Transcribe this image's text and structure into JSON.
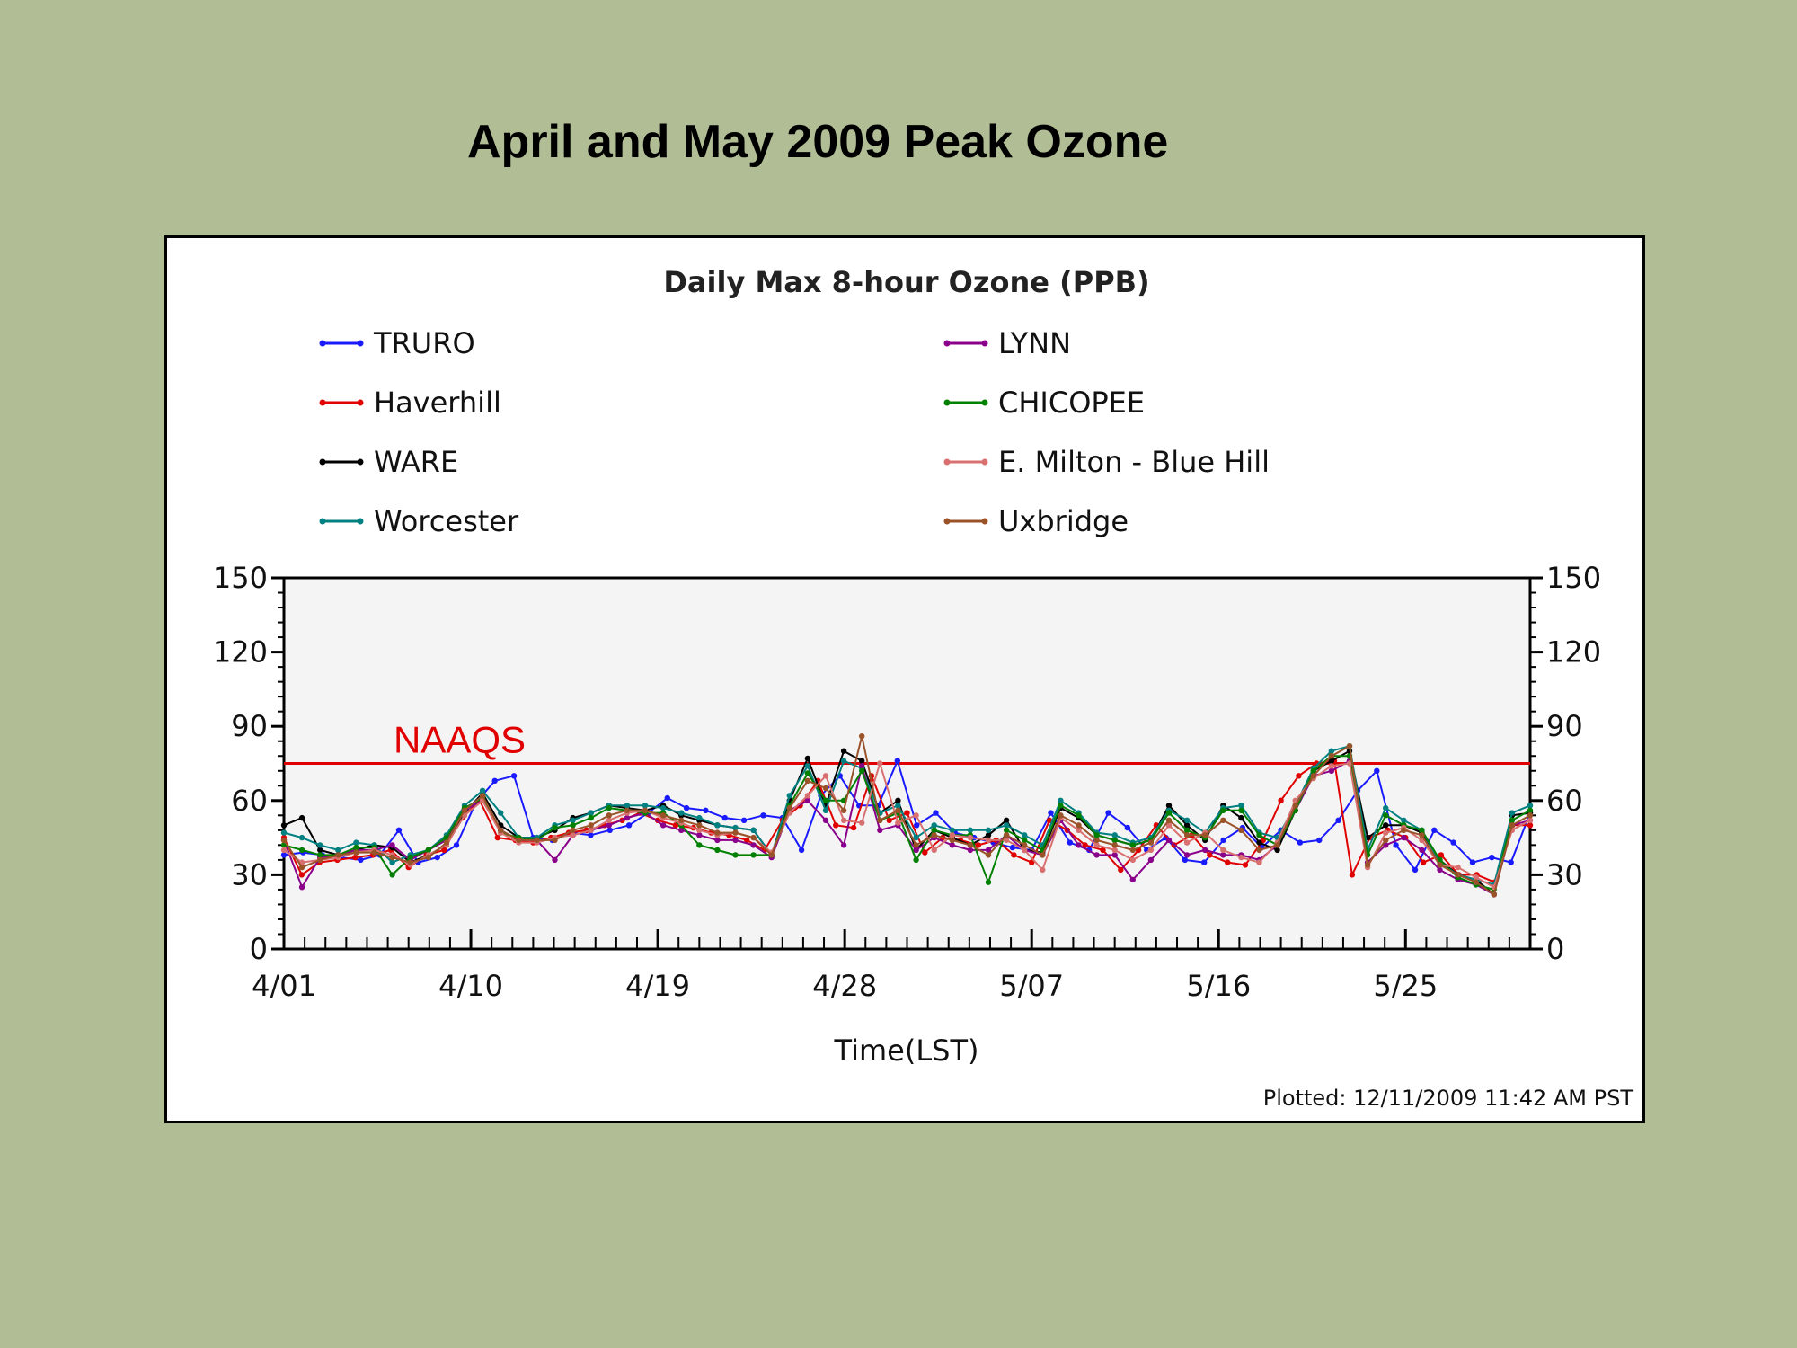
{
  "slide": {
    "title": "April and May 2009 Peak Ozone"
  },
  "colors": {
    "background": "#b1bd95",
    "naaqs": "#e00000"
  },
  "chart_data": {
    "type": "line",
    "title": "Daily Max 8-hour Ozone (PPB)",
    "xlabel": "Time(LST)",
    "ylabel": "",
    "ylim": [
      0,
      150
    ],
    "y_ticks": [
      0,
      30,
      60,
      90,
      120,
      150
    ],
    "y_ticks_right": true,
    "x_day_range": [
      1,
      61
    ],
    "x_ticks": [
      {
        "day": 1,
        "label": "4/01"
      },
      {
        "day": 10,
        "label": "4/10"
      },
      {
        "day": 19,
        "label": "4/19"
      },
      {
        "day": 28,
        "label": "4/28"
      },
      {
        "day": 37,
        "label": "5/07"
      },
      {
        "day": 46,
        "label": "5/16"
      },
      {
        "day": 55,
        "label": "5/25"
      }
    ],
    "grid": false,
    "legend_position": "top",
    "reference_line": {
      "label": "NAAQS",
      "value": 75,
      "color": "#e00000"
    },
    "footnote": "Plotted: 12/11/2009 11:42 AM PST",
    "series": [
      {
        "name": "TRURO",
        "color": "#1a1aff",
        "values": [
          38,
          39,
          38,
          37,
          36,
          38,
          48,
          35,
          37,
          42,
          59,
          68,
          70,
          45,
          44,
          47,
          46,
          48,
          50,
          55,
          61,
          57,
          56,
          53,
          52,
          54,
          53,
          40,
          62,
          70,
          58,
          58,
          76,
          50,
          55,
          47,
          45,
          43,
          41,
          40,
          55,
          43,
          40,
          55,
          49,
          40,
          45,
          36,
          35,
          44,
          49,
          41,
          48,
          43,
          44,
          52,
          64,
          72,
          42,
          32,
          48,
          43,
          35,
          37,
          35,
          55
        ]
      },
      {
        "name": "Haverhill",
        "color": "#e00000",
        "values": [
          45,
          30,
          35,
          36,
          37,
          38,
          40,
          33,
          38,
          40,
          53,
          60,
          45,
          44,
          43,
          45,
          47,
          48,
          50,
          52,
          55,
          52,
          50,
          49,
          47,
          46,
          44,
          40,
          52,
          58,
          68,
          50,
          49,
          70,
          52,
          55,
          39,
          45,
          44,
          42,
          44,
          38,
          35,
          52,
          48,
          42,
          40,
          32,
          40,
          50,
          42,
          46,
          38,
          35,
          34,
          44,
          60,
          70,
          75,
          76,
          30,
          45,
          48,
          45,
          35,
          38,
          30,
          30,
          27,
          50,
          50
        ]
      },
      {
        "name": "WARE",
        "color": "#000000",
        "values": [
          50,
          53,
          40,
          38,
          40,
          42,
          41,
          35,
          38,
          42,
          55,
          63,
          50,
          45,
          45,
          48,
          53,
          55,
          58,
          57,
          56,
          58,
          54,
          52,
          50,
          49,
          48,
          38,
          60,
          77,
          58,
          80,
          76,
          55,
          60,
          40,
          48,
          45,
          42,
          46,
          52,
          40,
          39,
          57,
          53,
          46,
          44,
          42,
          44,
          58,
          50,
          44,
          58,
          53,
          43,
          40,
          56,
          72,
          76,
          80,
          45,
          50,
          50,
          47,
          36,
          30,
          28,
          22,
          54,
          55
        ]
      },
      {
        "name": "Worcester",
        "color": "#008080",
        "values": [
          47,
          45,
          42,
          40,
          43,
          42,
          35,
          38,
          40,
          46,
          58,
          64,
          55,
          45,
          45,
          50,
          52,
          55,
          58,
          58,
          58,
          57,
          55,
          53,
          50,
          49,
          48,
          38,
          62,
          74,
          56,
          76,
          73,
          55,
          58,
          45,
          50,
          48,
          48,
          48,
          50,
          46,
          42,
          60,
          55,
          47,
          46,
          43,
          45,
          56,
          52,
          47,
          57,
          58,
          47,
          45,
          58,
          73,
          80,
          82,
          40,
          57,
          52,
          48,
          35,
          30,
          28,
          26,
          55,
          58
        ]
      },
      {
        "name": "LYNN",
        "color": "#8b008b",
        "values": [
          44,
          25,
          37,
          38,
          40,
          40,
          42,
          36,
          40,
          44,
          56,
          60,
          48,
          44,
          44,
          36,
          46,
          48,
          50,
          53,
          55,
          50,
          48,
          46,
          44,
          44,
          42,
          37,
          56,
          60,
          52,
          42,
          74,
          48,
          50,
          40,
          45,
          42,
          40,
          40,
          46,
          40,
          38,
          52,
          42,
          38,
          38,
          28,
          36,
          44,
          38,
          40,
          38,
          38,
          36,
          42,
          56,
          70,
          72,
          76,
          35,
          42,
          45,
          40,
          32,
          28,
          26,
          22,
          50,
          52
        ]
      },
      {
        "name": "CHICOPEE",
        "color": "#008000",
        "values": [
          42,
          40,
          38,
          38,
          41,
          41,
          30,
          37,
          40,
          45,
          57,
          61,
          47,
          45,
          44,
          49,
          50,
          53,
          57,
          56,
          55,
          55,
          50,
          42,
          40,
          38,
          38,
          38,
          58,
          71,
          60,
          60,
          72,
          52,
          55,
          36,
          48,
          46,
          46,
          27,
          48,
          44,
          40,
          58,
          54,
          46,
          44,
          42,
          44,
          55,
          48,
          45,
          56,
          56,
          46,
          42,
          56,
          72,
          78,
          78,
          38,
          54,
          50,
          48,
          36,
          29,
          26,
          24,
          52,
          56
        ]
      },
      {
        "name": "E. Milton - Blue Hill",
        "color": "#d97070",
        "values": [
          40,
          35,
          36,
          37,
          39,
          40,
          38,
          34,
          38,
          42,
          54,
          60,
          47,
          43,
          43,
          45,
          46,
          48,
          52,
          55,
          56,
          53,
          51,
          48,
          46,
          47,
          45,
          39,
          55,
          62,
          70,
          52,
          51,
          75,
          51,
          54,
          40,
          46,
          45,
          44,
          44,
          40,
          32,
          53,
          48,
          42,
          40,
          36,
          40,
          50,
          43,
          47,
          40,
          37,
          35,
          43,
          60,
          69,
          74,
          75,
          33,
          47,
          49,
          44,
          34,
          33,
          29,
          25,
          48,
          52
        ]
      },
      {
        "name": "Uxbridge",
        "color": "#9a5228",
        "values": [
          44,
          33,
          36,
          38,
          39,
          39,
          37,
          35,
          37,
          43,
          56,
          62,
          48,
          44,
          44,
          44,
          48,
          50,
          54,
          56,
          56,
          54,
          52,
          50,
          47,
          47,
          45,
          38,
          57,
          68,
          65,
          56,
          86,
          52,
          56,
          42,
          46,
          44,
          42,
          38,
          46,
          42,
          38,
          54,
          50,
          44,
          42,
          40,
          43,
          52,
          46,
          46,
          52,
          48,
          40,
          42,
          58,
          70,
          78,
          82,
          34,
          44,
          48,
          46,
          34,
          30,
          27,
          22,
          50,
          54
        ]
      }
    ]
  }
}
